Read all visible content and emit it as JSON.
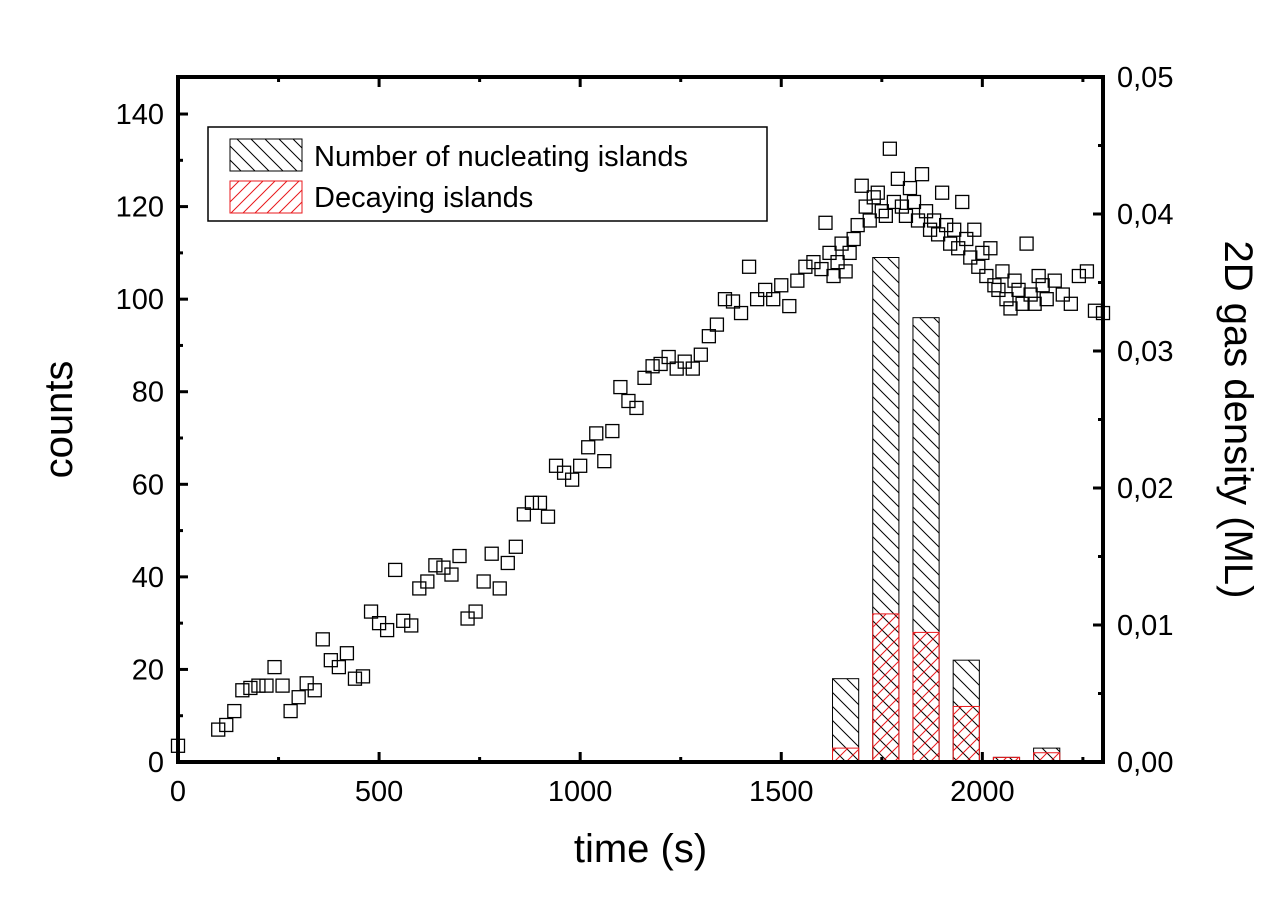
{
  "chart_data": {
    "type": "scatter",
    "xlabel": "time (s)",
    "ylabel": "counts",
    "y2label": "2D gas density (ML)",
    "xlim": [
      0,
      2300
    ],
    "ylim": [
      0,
      148
    ],
    "y2lim": [
      0,
      0.05
    ],
    "x_ticks": [
      "0",
      "500",
      "1000",
      "1500",
      "2000"
    ],
    "y_ticks": [
      "0",
      "20",
      "40",
      "60",
      "80",
      "100",
      "120",
      "140"
    ],
    "y2_ticks": [
      "0,00",
      "0,01",
      "0,02",
      "0,03",
      "0,04",
      "0,05"
    ],
    "legend": {
      "position": "top-left",
      "entries": [
        "Number of nucleating islands",
        "Decaying islands"
      ]
    },
    "series": [
      {
        "marker": "open-square",
        "axis": "left",
        "points": [
          [
            0,
            3.5
          ],
          [
            100,
            7
          ],
          [
            120,
            8
          ],
          [
            140,
            11
          ],
          [
            160,
            15.5
          ],
          [
            180,
            16
          ],
          [
            200,
            16.5
          ],
          [
            220,
            16.5
          ],
          [
            240,
            20.5
          ],
          [
            260,
            16.5
          ],
          [
            280,
            11
          ],
          [
            300,
            14
          ],
          [
            320,
            17
          ],
          [
            340,
            15.5
          ],
          [
            360,
            26.5
          ],
          [
            380,
            22
          ],
          [
            400,
            20.5
          ],
          [
            420,
            23.5
          ],
          [
            440,
            18
          ],
          [
            460,
            18.5
          ],
          [
            480,
            32.5
          ],
          [
            500,
            30
          ],
          [
            520,
            28.5
          ],
          [
            540,
            41.5
          ],
          [
            560,
            30.5
          ],
          [
            580,
            29.5
          ],
          [
            600,
            37.5
          ],
          [
            620,
            39
          ],
          [
            640,
            42.5
          ],
          [
            660,
            42
          ],
          [
            680,
            40.5
          ],
          [
            700,
            44.5
          ],
          [
            720,
            31
          ],
          [
            740,
            32.5
          ],
          [
            760,
            39
          ],
          [
            780,
            45
          ],
          [
            800,
            37.5
          ],
          [
            820,
            43
          ],
          [
            840,
            46.5
          ],
          [
            860,
            53.5
          ],
          [
            880,
            56
          ],
          [
            900,
            56
          ],
          [
            920,
            53
          ],
          [
            940,
            64
          ],
          [
            960,
            62.5
          ],
          [
            980,
            61
          ],
          [
            1000,
            64
          ],
          [
            1020,
            68
          ],
          [
            1040,
            71
          ],
          [
            1060,
            65
          ],
          [
            1080,
            71.5
          ],
          [
            1100,
            81
          ],
          [
            1120,
            78
          ],
          [
            1140,
            76.5
          ],
          [
            1160,
            83
          ],
          [
            1180,
            85.5
          ],
          [
            1200,
            86
          ],
          [
            1220,
            87.5
          ],
          [
            1240,
            85
          ],
          [
            1260,
            86.5
          ],
          [
            1280,
            85
          ],
          [
            1300,
            88
          ],
          [
            1320,
            92
          ],
          [
            1340,
            94.5
          ],
          [
            1360,
            100
          ],
          [
            1380,
            99.5
          ],
          [
            1400,
            97
          ],
          [
            1420,
            107
          ],
          [
            1440,
            100
          ],
          [
            1460,
            102
          ],
          [
            1480,
            100
          ],
          [
            1500,
            103
          ],
          [
            1520,
            98.5
          ],
          [
            1540,
            104
          ],
          [
            1560,
            107
          ],
          [
            1580,
            108
          ],
          [
            1600,
            106.5
          ],
          [
            1610,
            116.5
          ],
          [
            1620,
            110
          ],
          [
            1630,
            105
          ],
          [
            1640,
            108
          ],
          [
            1650,
            112
          ],
          [
            1660,
            106
          ],
          [
            1670,
            110
          ],
          [
            1680,
            113
          ],
          [
            1690,
            116
          ],
          [
            1700,
            124.5
          ],
          [
            1710,
            120
          ],
          [
            1720,
            117
          ],
          [
            1730,
            122
          ],
          [
            1740,
            123
          ],
          [
            1750,
            119
          ],
          [
            1760,
            118
          ],
          [
            1770,
            132.5
          ],
          [
            1780,
            121
          ],
          [
            1790,
            126
          ],
          [
            1800,
            120
          ],
          [
            1810,
            118
          ],
          [
            1820,
            124
          ],
          [
            1830,
            121
          ],
          [
            1840,
            117
          ],
          [
            1850,
            127
          ],
          [
            1860,
            119
          ],
          [
            1870,
            115
          ],
          [
            1880,
            117
          ],
          [
            1890,
            114
          ],
          [
            1900,
            123
          ],
          [
            1910,
            116
          ],
          [
            1920,
            112
          ],
          [
            1930,
            115
          ],
          [
            1940,
            111
          ],
          [
            1950,
            121
          ],
          [
            1960,
            113
          ],
          [
            1970,
            109
          ],
          [
            1980,
            115
          ],
          [
            1990,
            107
          ],
          [
            2000,
            110
          ],
          [
            2010,
            105
          ],
          [
            2020,
            111
          ],
          [
            2030,
            103
          ],
          [
            2040,
            102
          ],
          [
            2050,
            106
          ],
          [
            2060,
            100
          ],
          [
            2070,
            98
          ],
          [
            2080,
            104
          ],
          [
            2090,
            102
          ],
          [
            2100,
            99
          ],
          [
            2110,
            112
          ],
          [
            2120,
            101
          ],
          [
            2130,
            99
          ],
          [
            2140,
            105
          ],
          [
            2150,
            103
          ],
          [
            2160,
            100
          ],
          [
            2180,
            104
          ],
          [
            2200,
            101
          ],
          [
            2220,
            99
          ],
          [
            2240,
            105
          ],
          [
            2260,
            106
          ],
          [
            2280,
            97.5
          ],
          [
            2300,
            97
          ]
        ]
      },
      {
        "name": "Number of nucleating islands",
        "type": "bar",
        "axis": "left",
        "hatch": "diagonal-back",
        "color": "#000000",
        "bins": [
          [
            1620,
            1700,
            18
          ],
          [
            1720,
            1800,
            109
          ],
          [
            1820,
            1900,
            96
          ],
          [
            1920,
            2000,
            22
          ],
          [
            2020,
            2100,
            1
          ],
          [
            2120,
            2200,
            3
          ]
        ]
      },
      {
        "name": "Decaying islands",
        "type": "bar",
        "axis": "left",
        "hatch": "diagonal-forward",
        "color": "#e8191c",
        "bins": [
          [
            1620,
            1700,
            3
          ],
          [
            1720,
            1800,
            32
          ],
          [
            1820,
            1900,
            28
          ],
          [
            1920,
            2000,
            12
          ],
          [
            2020,
            2100,
            1
          ],
          [
            2120,
            2200,
            2
          ]
        ]
      }
    ]
  }
}
